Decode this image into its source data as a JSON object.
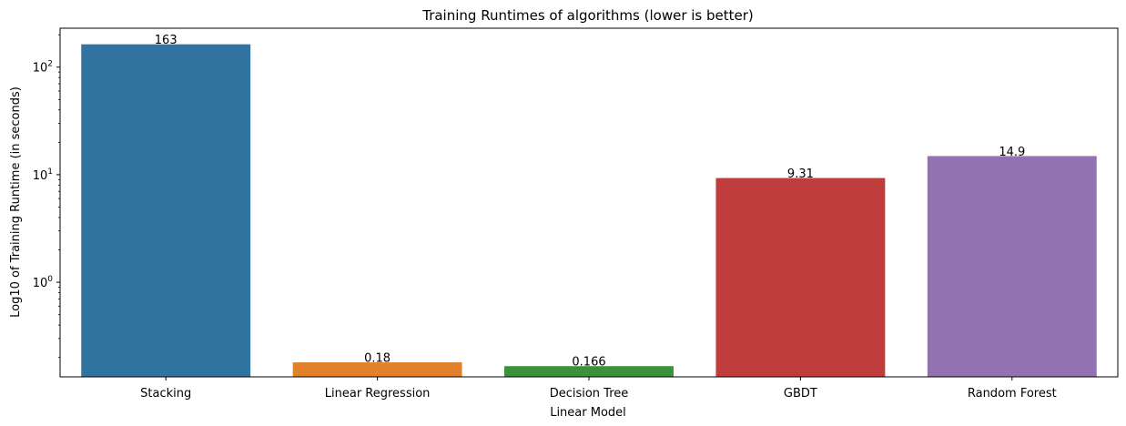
{
  "chart_data": {
    "type": "bar",
    "title": "Training Runtimes of algorithms (lower is better)",
    "xlabel": "Linear Model",
    "ylabel": "Log10 of Training Runtime (in seconds)",
    "yscale": "log",
    "ylim": [
      0.132,
      230
    ],
    "grid": false,
    "legend": "none",
    "categories": [
      "Stacking",
      "Linear Regression",
      "Decision Tree",
      "GBDT",
      "Random Forest"
    ],
    "values": [
      163,
      0.18,
      0.166,
      9.31,
      14.9
    ],
    "data_labels": [
      "163",
      "0.18",
      "0.166",
      "9.31",
      "14.9"
    ],
    "colors": [
      "#3274a1",
      "#e1812c",
      "#3a923a",
      "#c03d3e",
      "#9372b2"
    ],
    "yticks": [
      {
        "base": "10",
        "exp": "0",
        "value": 1
      },
      {
        "base": "10",
        "exp": "1",
        "value": 10
      },
      {
        "base": "10",
        "exp": "2",
        "value": 100
      }
    ]
  }
}
